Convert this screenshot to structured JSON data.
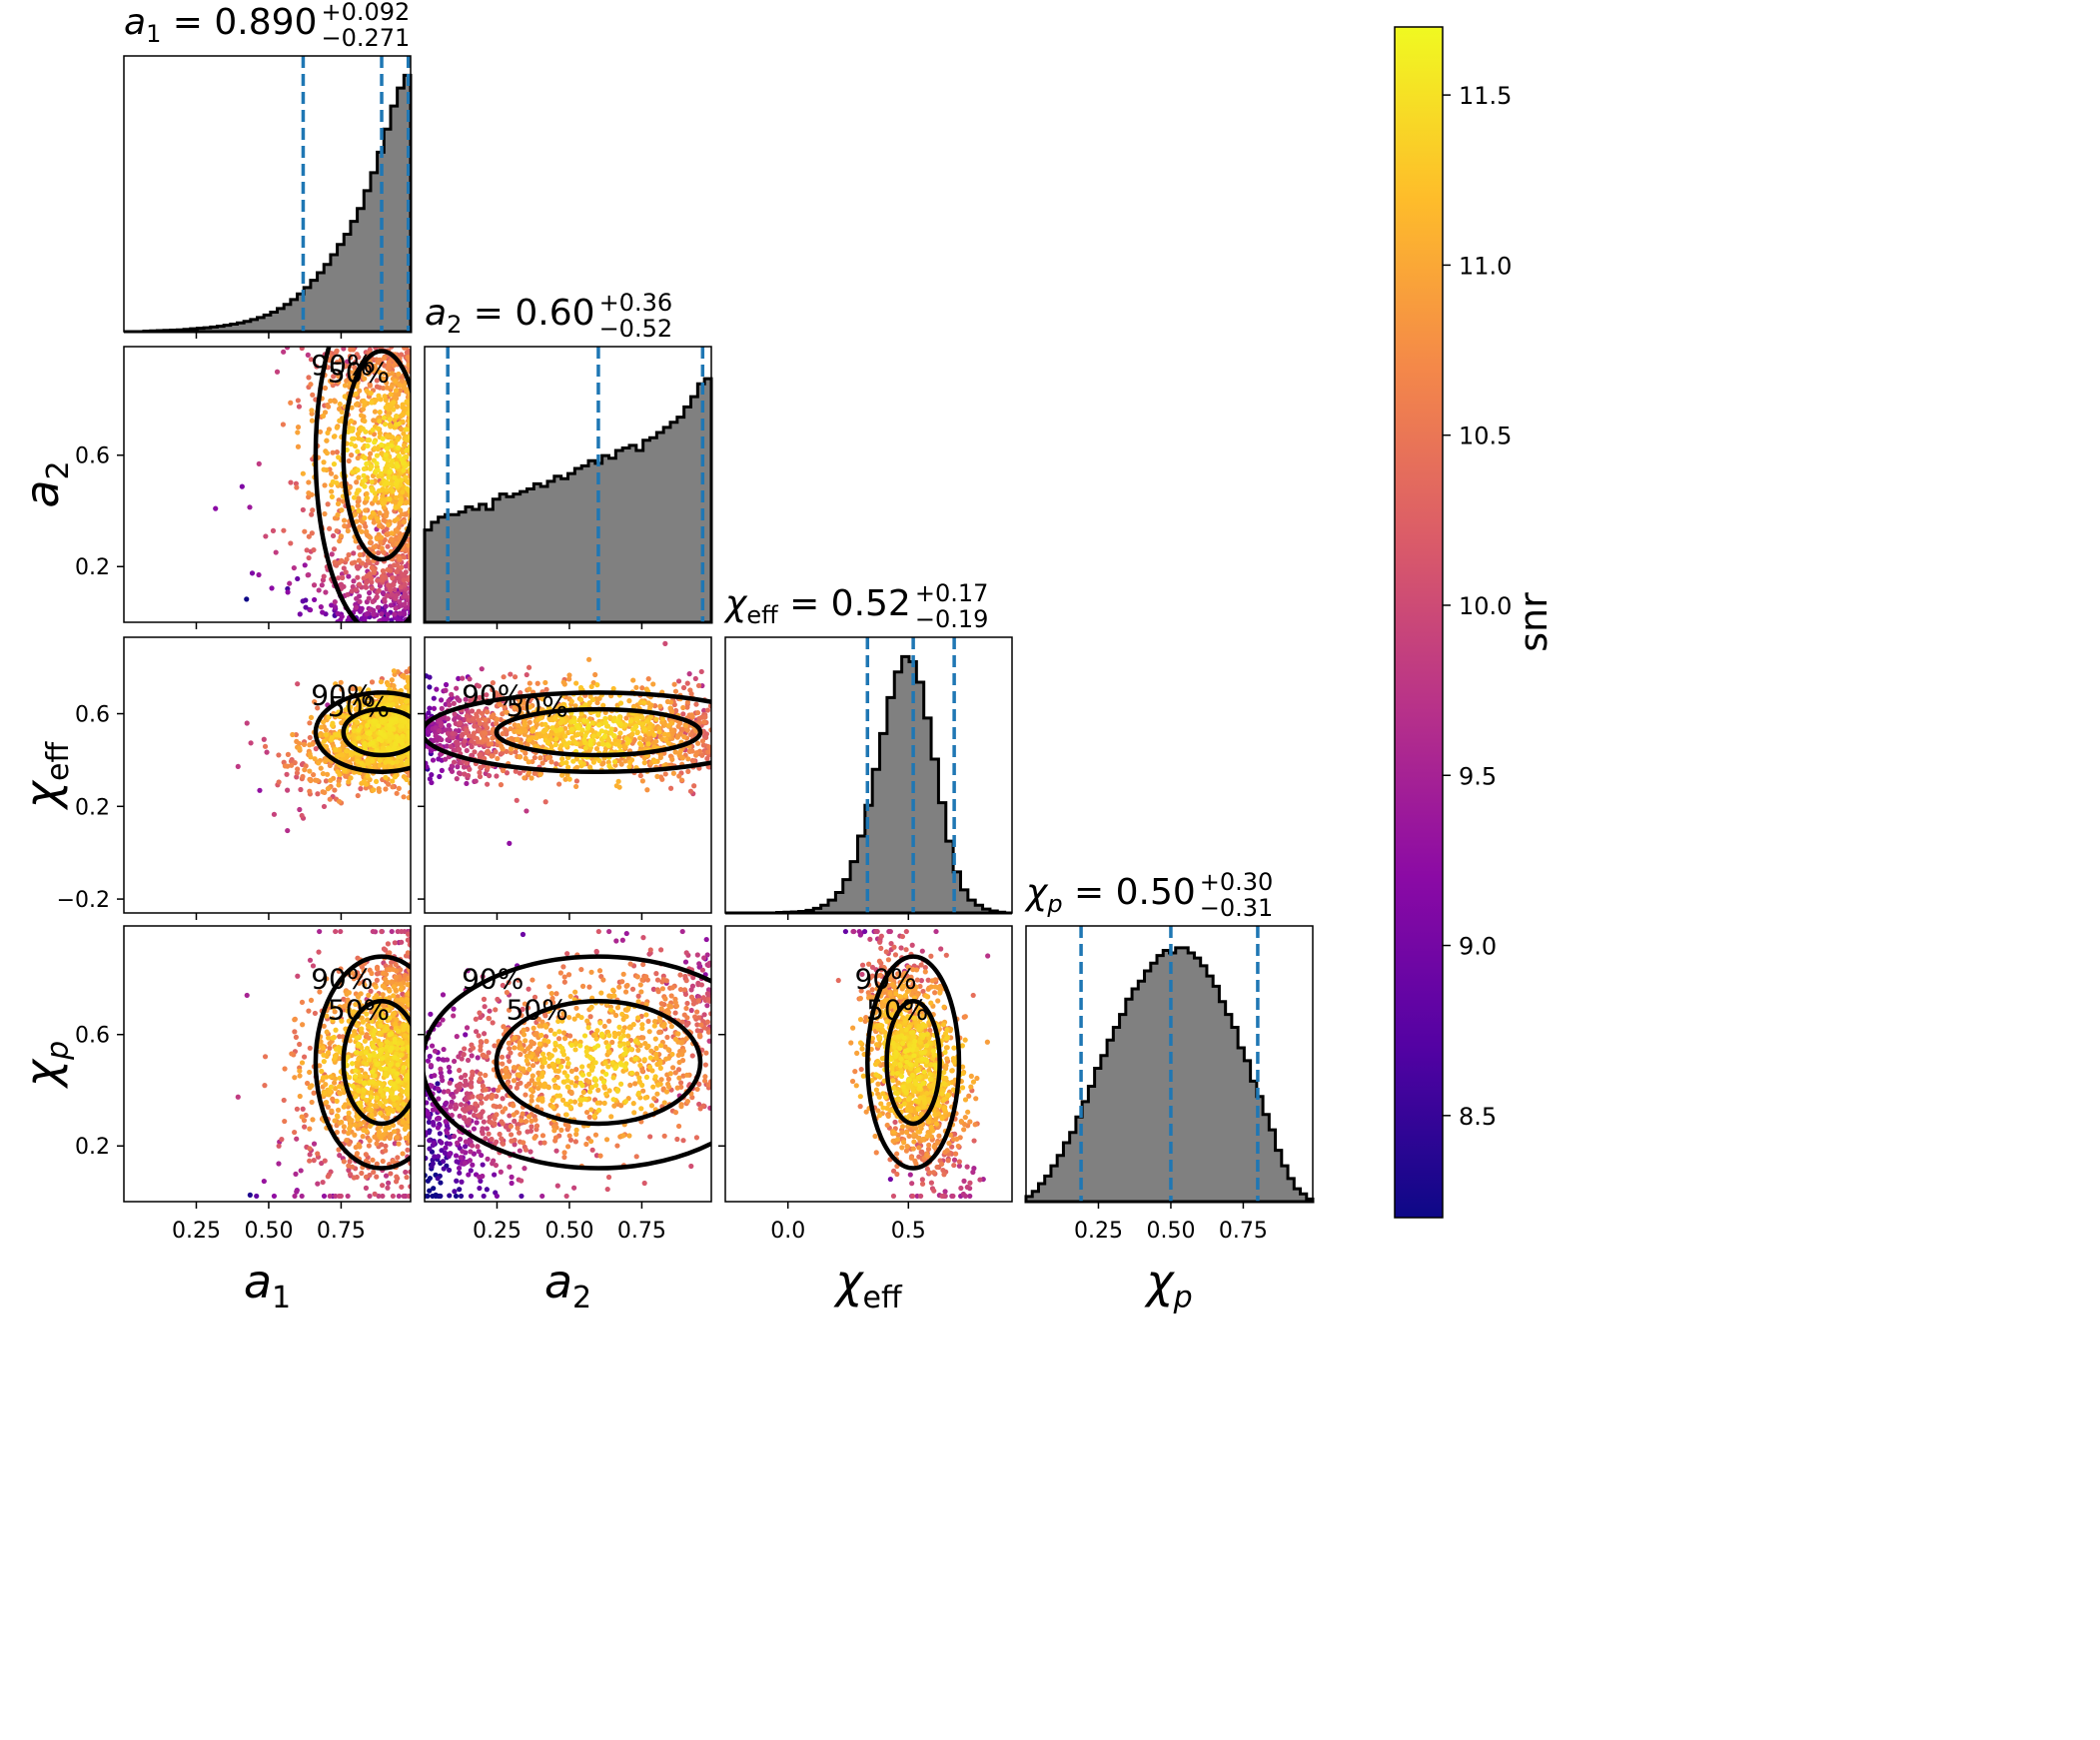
{
  "chart_data": {
    "type": "corner",
    "parameters": [
      {
        "key": "a1",
        "label_main": "a",
        "label_sub": "1",
        "range": [
          0.0,
          0.99
        ],
        "title_value": "0.890",
        "title_plus": "+0.092",
        "title_minus": "−0.271",
        "lower": 0.619,
        "median": 0.89,
        "upper": 0.982,
        "ticks": [
          0.25,
          0.5,
          0.75
        ],
        "tick_labels": [
          "0.25",
          "0.50",
          "0.75"
        ],
        "hist": [
          0,
          0,
          0,
          0.002,
          0.003,
          0.004,
          0.005,
          0.006,
          0.007,
          0.009,
          0.011,
          0.013,
          0.015,
          0.018,
          0.021,
          0.025,
          0.029,
          0.034,
          0.04,
          0.047,
          0.055,
          0.065,
          0.076,
          0.09,
          0.106,
          0.125,
          0.147,
          0.172,
          0.2,
          0.23,
          0.262,
          0.3,
          0.34,
          0.38,
          0.43,
          0.48,
          0.55,
          0.62,
          0.7,
          0.79,
          0.88,
          0.95,
          1.0
        ]
      },
      {
        "key": "a2",
        "label_main": "a",
        "label_sub": "2",
        "range": [
          0.0,
          0.99
        ],
        "title_value": "0.60",
        "title_plus": "+0.36",
        "title_minus": "−0.52",
        "lower": 0.08,
        "median": 0.6,
        "upper": 0.96,
        "ticks": [
          0.25,
          0.5,
          0.75
        ],
        "tick_labels": [
          "0.25",
          "0.50",
          "0.75"
        ],
        "hist": [
          0.36,
          0.39,
          0.41,
          0.42,
          0.42,
          0.43,
          0.45,
          0.44,
          0.46,
          0.44,
          0.48,
          0.5,
          0.49,
          0.5,
          0.51,
          0.52,
          0.54,
          0.53,
          0.55,
          0.57,
          0.56,
          0.58,
          0.6,
          0.61,
          0.63,
          0.62,
          0.65,
          0.64,
          0.67,
          0.68,
          0.69,
          0.67,
          0.71,
          0.72,
          0.74,
          0.76,
          0.78,
          0.8,
          0.84,
          0.88,
          0.93,
          0.95
        ]
      },
      {
        "key": "chi_eff",
        "label_main": "χ",
        "label_sub": "eff",
        "range": [
          -0.26,
          0.93
        ],
        "title_value": "0.52",
        "title_plus": "+0.17",
        "title_minus": "−0.19",
        "lower": 0.33,
        "median": 0.52,
        "upper": 0.69,
        "ticks": [
          0.0,
          0.5
        ],
        "tick_labels": [
          "0.0",
          "0.5"
        ],
        "hist": [
          0,
          0,
          0,
          0,
          0,
          0,
          0,
          0.002,
          0.003,
          0.004,
          0.006,
          0.01,
          0.018,
          0.03,
          0.05,
          0.08,
          0.13,
          0.2,
          0.3,
          0.42,
          0.56,
          0.7,
          0.84,
          0.94,
          1.0,
          0.98,
          0.9,
          0.76,
          0.6,
          0.43,
          0.28,
          0.16,
          0.09,
          0.05,
          0.03,
          0.015,
          0.008,
          0.003,
          0
        ]
      },
      {
        "key": "chi_p",
        "label_main": "χ",
        "label_sub": "p",
        "range": [
          0.0,
          0.99
        ],
        "title_value": "0.50",
        "title_plus": "+0.30",
        "title_minus": "−0.31",
        "lower": 0.19,
        "median": 0.5,
        "upper": 0.8,
        "ticks": [
          0.25,
          0.5,
          0.75
        ],
        "tick_labels": [
          "0.25",
          "0.50",
          "0.75"
        ],
        "hist": [
          0.02,
          0.04,
          0.07,
          0.1,
          0.14,
          0.18,
          0.23,
          0.27,
          0.33,
          0.39,
          0.45,
          0.52,
          0.57,
          0.63,
          0.68,
          0.73,
          0.79,
          0.83,
          0.86,
          0.9,
          0.93,
          0.96,
          0.98,
          0.97,
          0.99,
          0.99,
          0.97,
          0.95,
          0.92,
          0.88,
          0.84,
          0.78,
          0.73,
          0.68,
          0.6,
          0.55,
          0.47,
          0.41,
          0.34,
          0.28,
          0.2,
          0.14,
          0.09,
          0.05,
          0.03,
          0.01
        ]
      }
    ],
    "offdiag_ticks": {
      "a2": {
        "values": [
          0.2,
          0.6
        ],
        "labels": [
          "0.2",
          "0.6"
        ],
        "range": [
          0.0,
          0.99
        ]
      },
      "chi_eff": {
        "values": [
          -0.2,
          0.2,
          0.6
        ],
        "labels": [
          "−0.2",
          "0.2",
          "0.6"
        ],
        "range": [
          -0.26,
          0.93
        ]
      },
      "chi_p": {
        "values": [
          0.2,
          0.6
        ],
        "labels": [
          "0.2",
          "0.6"
        ],
        "range": [
          0.0,
          0.99
        ]
      }
    },
    "contour_labels": {
      "inner": "50%",
      "outer": "90%"
    },
    "colorbar": {
      "label": "snr",
      "range": [
        8.2,
        11.7
      ],
      "ticks": [
        8.5,
        9.0,
        9.5,
        10.0,
        10.5,
        11.0,
        11.5
      ],
      "tick_labels": [
        "8.5",
        "9.0",
        "9.5",
        "10.0",
        "10.5",
        "11.0",
        "11.5"
      ],
      "colormap": "plasma",
      "stops": [
        "#0d0887",
        "#5302a3",
        "#8b0aa5",
        "#b83289",
        "#db5c68",
        "#f48849",
        "#febd2a",
        "#f0f921"
      ]
    },
    "hist_fill": "#808080",
    "quantile_line_color": "#1f77b4"
  }
}
